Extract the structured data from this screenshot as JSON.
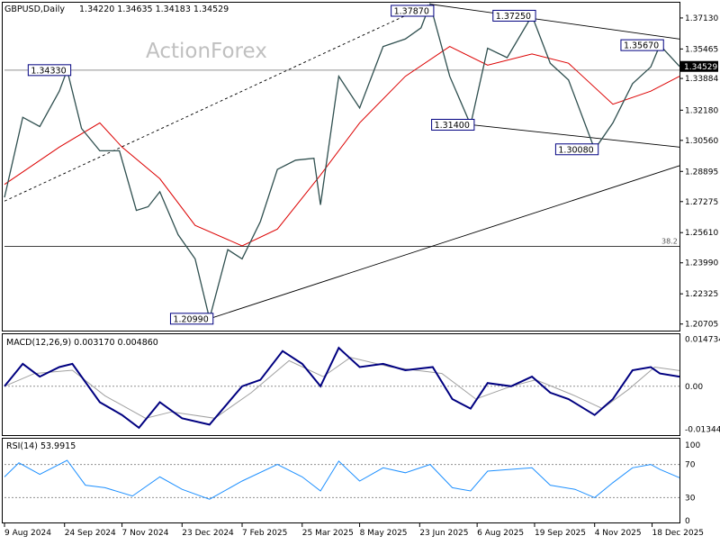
{
  "chart_data": {
    "type": "line",
    "symbol_title": "GBPUSD,Daily",
    "ohlc_text": "1.34220 1.34635 1.34183 1.34529",
    "watermark": "ActionForex",
    "price_axis": {
      "ylim": [
        1.204,
        1.379
      ],
      "tick_labels": [
        "1.37130",
        "1.35465",
        "1.33884",
        "1.32180",
        "1.30560",
        "1.28895",
        "1.27275",
        "1.25610",
        "1.23990",
        "1.22325",
        "1.20705"
      ],
      "current_price_label": "1.34529"
    },
    "fib_level": {
      "label": "38.2",
      "value": 1.2487
    },
    "horizontal_line": {
      "value": 1.3433
    },
    "x_axis": {
      "range": [
        "2024-08-09",
        "2026-01-08"
      ],
      "tick_labels": [
        {
          "label": "9 Aug 2024",
          "date": "2024-08-09"
        },
        {
          "label": "24 Sep 2024",
          "date": "2024-09-24"
        },
        {
          "label": "7 Nov 2024",
          "date": "2024-11-07"
        },
        {
          "label": "23 Dec 2024",
          "date": "2024-12-23"
        },
        {
          "label": "7 Feb 2025",
          "date": "2025-02-07"
        },
        {
          "label": "25 Mar 2025",
          "date": "2025-03-25"
        },
        {
          "label": "8 May 2025",
          "date": "2025-05-08"
        },
        {
          "label": "23 Jun 2025",
          "date": "2025-06-23"
        },
        {
          "label": "6 Aug 2025",
          "date": "2025-08-06"
        },
        {
          "label": "19 Sep 2025",
          "date": "2025-09-19"
        },
        {
          "label": "4 Nov 2025",
          "date": "2025-11-04"
        },
        {
          "label": "18 Dec 2025",
          "date": "2025-12-18"
        }
      ]
    },
    "price_series": [
      {
        "date": "2024-08-09",
        "value": 1.275
      },
      {
        "date": "2024-08-23",
        "value": 1.318
      },
      {
        "date": "2024-09-05",
        "value": 1.313
      },
      {
        "date": "2024-09-20",
        "value": 1.332
      },
      {
        "date": "2024-09-26",
        "value": 1.3433
      },
      {
        "date": "2024-10-07",
        "value": 1.312
      },
      {
        "date": "2024-10-21",
        "value": 1.3
      },
      {
        "date": "2024-11-05",
        "value": 1.3
      },
      {
        "date": "2024-11-18",
        "value": 1.268
      },
      {
        "date": "2024-11-27",
        "value": 1.27
      },
      {
        "date": "2024-12-06",
        "value": 1.278
      },
      {
        "date": "2024-12-20",
        "value": 1.255
      },
      {
        "date": "2025-01-02",
        "value": 1.242
      },
      {
        "date": "2025-01-13",
        "value": 1.2099
      },
      {
        "date": "2025-01-27",
        "value": 1.247
      },
      {
        "date": "2025-02-07",
        "value": 1.242
      },
      {
        "date": "2025-02-21",
        "value": 1.262
      },
      {
        "date": "2025-03-06",
        "value": 1.29
      },
      {
        "date": "2025-03-20",
        "value": 1.295
      },
      {
        "date": "2025-04-03",
        "value": 1.296
      },
      {
        "date": "2025-04-08",
        "value": 1.271
      },
      {
        "date": "2025-04-22",
        "value": 1.34
      },
      {
        "date": "2025-05-08",
        "value": 1.323
      },
      {
        "date": "2025-05-26",
        "value": 1.356
      },
      {
        "date": "2025-06-12",
        "value": 1.36
      },
      {
        "date": "2025-06-24",
        "value": 1.366
      },
      {
        "date": "2025-07-01",
        "value": 1.3787
      },
      {
        "date": "2025-07-16",
        "value": 1.34
      },
      {
        "date": "2025-08-01",
        "value": 1.314
      },
      {
        "date": "2025-08-14",
        "value": 1.355
      },
      {
        "date": "2025-08-29",
        "value": 1.35
      },
      {
        "date": "2025-09-17",
        "value": 1.3725
      },
      {
        "date": "2025-10-01",
        "value": 1.347
      },
      {
        "date": "2025-10-15",
        "value": 1.338
      },
      {
        "date": "2025-11-04",
        "value": 1.3008
      },
      {
        "date": "2025-11-18",
        "value": 1.315
      },
      {
        "date": "2025-12-03",
        "value": 1.336
      },
      {
        "date": "2025-12-17",
        "value": 1.345
      },
      {
        "date": "2025-12-24",
        "value": 1.3567
      },
      {
        "date": "2026-01-08",
        "value": 1.3453
      }
    ],
    "ma_series": [
      {
        "date": "2024-08-09",
        "value": 1.282
      },
      {
        "date": "2024-09-20",
        "value": 1.302
      },
      {
        "date": "2024-10-21",
        "value": 1.315
      },
      {
        "date": "2024-11-07",
        "value": 1.302
      },
      {
        "date": "2024-12-06",
        "value": 1.285
      },
      {
        "date": "2025-01-02",
        "value": 1.26
      },
      {
        "date": "2025-02-07",
        "value": 1.249
      },
      {
        "date": "2025-03-06",
        "value": 1.258
      },
      {
        "date": "2025-04-08",
        "value": 1.287
      },
      {
        "date": "2025-05-08",
        "value": 1.315
      },
      {
        "date": "2025-06-12",
        "value": 1.34
      },
      {
        "date": "2025-07-16",
        "value": 1.356
      },
      {
        "date": "2025-08-14",
        "value": 1.346
      },
      {
        "date": "2025-09-17",
        "value": 1.352
      },
      {
        "date": "2025-10-15",
        "value": 1.347
      },
      {
        "date": "2025-11-18",
        "value": 1.325
      },
      {
        "date": "2025-12-17",
        "value": 1.332
      },
      {
        "date": "2026-01-08",
        "value": 1.34
      }
    ],
    "annotations": [
      {
        "label": "1.34330",
        "date": "2024-09-26",
        "value": 1.3433
      },
      {
        "label": "1.37870",
        "date": "2025-07-01",
        "value": 1.3787
      },
      {
        "label": "1.37250",
        "date": "2025-09-17",
        "value": 1.3725
      },
      {
        "label": "1.35670",
        "date": "2025-12-24",
        "value": 1.3567
      },
      {
        "label": "1.31400",
        "date": "2025-08-01",
        "value": 1.314
      },
      {
        "label": "1.30080",
        "date": "2025-11-04",
        "value": 1.3008
      },
      {
        "label": "1.20990",
        "date": "2025-01-13",
        "value": 1.2099
      }
    ],
    "trendlines": [
      {
        "style": "dashed",
        "start": {
          "date": "2024-08-09",
          "value": 1.273
        },
        "end": {
          "date": "2025-07-01",
          "value": 1.3787
        }
      },
      {
        "style": "solid",
        "start": {
          "date": "2025-07-01",
          "value": 1.3787
        },
        "end": {
          "date": "2026-01-08",
          "value": 1.36
        }
      },
      {
        "style": "solid",
        "start": {
          "date": "2025-08-01",
          "value": 1.314
        },
        "end": {
          "date": "2026-01-08",
          "value": 1.302
        }
      },
      {
        "style": "solid",
        "start": {
          "date": "2025-01-13",
          "value": 1.2099
        },
        "end": {
          "date": "2026-01-08",
          "value": 1.292
        }
      }
    ],
    "macd": {
      "title": "MACD(12,26,9) 0.003170 0.004860",
      "ylim": [
        -0.015,
        0.016
      ],
      "tick_labels": [
        {
          "label": "0.014734",
          "value": 0.014734
        },
        {
          "label": "0.00",
          "value": 0.0
        },
        {
          "label": "-0.013442",
          "value": -0.013442
        }
      ],
      "series": [
        {
          "date": "2024-08-09",
          "value": 0.0
        },
        {
          "date": "2024-08-23",
          "value": 0.007
        },
        {
          "date": "2024-09-05",
          "value": 0.003
        },
        {
          "date": "2024-09-20",
          "value": 0.006
        },
        {
          "date": "2024-09-30",
          "value": 0.007
        },
        {
          "date": "2024-10-21",
          "value": -0.005
        },
        {
          "date": "2024-11-07",
          "value": -0.009
        },
        {
          "date": "2024-11-20",
          "value": -0.013
        },
        {
          "date": "2024-12-06",
          "value": -0.005
        },
        {
          "date": "2024-12-23",
          "value": -0.01
        },
        {
          "date": "2025-01-13",
          "value": -0.012
        },
        {
          "date": "2025-02-07",
          "value": 0.0
        },
        {
          "date": "2025-02-21",
          "value": 0.002
        },
        {
          "date": "2025-03-10",
          "value": 0.011
        },
        {
          "date": "2025-03-25",
          "value": 0.007
        },
        {
          "date": "2025-04-08",
          "value": 0.0
        },
        {
          "date": "2025-04-22",
          "value": 0.012
        },
        {
          "date": "2025-05-08",
          "value": 0.006
        },
        {
          "date": "2025-05-26",
          "value": 0.007
        },
        {
          "date": "2025-06-12",
          "value": 0.005
        },
        {
          "date": "2025-07-03",
          "value": 0.006
        },
        {
          "date": "2025-07-18",
          "value": -0.004
        },
        {
          "date": "2025-08-01",
          "value": -0.007
        },
        {
          "date": "2025-08-14",
          "value": 0.001
        },
        {
          "date": "2025-09-01",
          "value": 0.0
        },
        {
          "date": "2025-09-17",
          "value": 0.003
        },
        {
          "date": "2025-10-01",
          "value": -0.002
        },
        {
          "date": "2025-10-15",
          "value": -0.004
        },
        {
          "date": "2025-11-04",
          "value": -0.009
        },
        {
          "date": "2025-11-18",
          "value": -0.004
        },
        {
          "date": "2025-12-03",
          "value": 0.005
        },
        {
          "date": "2025-12-17",
          "value": 0.006
        },
        {
          "date": "2025-12-24",
          "value": 0.004
        },
        {
          "date": "2026-01-08",
          "value": 0.003
        }
      ],
      "signal": [
        {
          "date": "2024-08-09",
          "value": 0.0
        },
        {
          "date": "2024-09-01",
          "value": 0.004
        },
        {
          "date": "2024-09-30",
          "value": 0.005
        },
        {
          "date": "2024-10-25",
          "value": -0.003
        },
        {
          "date": "2024-11-25",
          "value": -0.01
        },
        {
          "date": "2024-12-15",
          "value": -0.008
        },
        {
          "date": "2025-01-17",
          "value": -0.01
        },
        {
          "date": "2025-02-14",
          "value": -0.002
        },
        {
          "date": "2025-03-15",
          "value": 0.008
        },
        {
          "date": "2025-04-10",
          "value": 0.003
        },
        {
          "date": "2025-05-01",
          "value": 0.009
        },
        {
          "date": "2025-06-01",
          "value": 0.006
        },
        {
          "date": "2025-07-10",
          "value": 0.004
        },
        {
          "date": "2025-08-05",
          "value": -0.004
        },
        {
          "date": "2025-09-01",
          "value": 0.0
        },
        {
          "date": "2025-09-20",
          "value": 0.002
        },
        {
          "date": "2025-10-20",
          "value": -0.003
        },
        {
          "date": "2025-11-10",
          "value": -0.007
        },
        {
          "date": "2025-11-30",
          "value": -0.001
        },
        {
          "date": "2025-12-20",
          "value": 0.006
        },
        {
          "date": "2026-01-08",
          "value": 0.0049
        }
      ]
    },
    "rsi": {
      "title": "RSI(14) 53.9915",
      "ylim": [
        0,
        100
      ],
      "tick_labels": [
        {
          "label": "100",
          "value": 100
        },
        {
          "label": "70",
          "value": 70
        },
        {
          "label": "30",
          "value": 30
        },
        {
          "label": "0",
          "value": 0
        }
      ],
      "series": [
        {
          "date": "2024-08-09",
          "value": 55
        },
        {
          "date": "2024-08-20",
          "value": 72
        },
        {
          "date": "2024-09-05",
          "value": 58
        },
        {
          "date": "2024-09-26",
          "value": 75
        },
        {
          "date": "2024-10-10",
          "value": 45
        },
        {
          "date": "2024-10-25",
          "value": 42
        },
        {
          "date": "2024-11-15",
          "value": 32
        },
        {
          "date": "2024-12-06",
          "value": 55
        },
        {
          "date": "2024-12-23",
          "value": 40
        },
        {
          "date": "2025-01-13",
          "value": 28
        },
        {
          "date": "2025-02-07",
          "value": 50
        },
        {
          "date": "2025-03-06",
          "value": 70
        },
        {
          "date": "2025-03-25",
          "value": 55
        },
        {
          "date": "2025-04-08",
          "value": 38
        },
        {
          "date": "2025-04-22",
          "value": 74
        },
        {
          "date": "2025-05-08",
          "value": 50
        },
        {
          "date": "2025-05-26",
          "value": 66
        },
        {
          "date": "2025-06-12",
          "value": 60
        },
        {
          "date": "2025-07-01",
          "value": 70
        },
        {
          "date": "2025-07-18",
          "value": 42
        },
        {
          "date": "2025-08-01",
          "value": 38
        },
        {
          "date": "2025-08-14",
          "value": 62
        },
        {
          "date": "2025-09-17",
          "value": 66
        },
        {
          "date": "2025-10-01",
          "value": 45
        },
        {
          "date": "2025-10-20",
          "value": 40
        },
        {
          "date": "2025-11-04",
          "value": 30
        },
        {
          "date": "2025-11-18",
          "value": 48
        },
        {
          "date": "2025-12-03",
          "value": 66
        },
        {
          "date": "2025-12-17",
          "value": 70
        },
        {
          "date": "2025-12-24",
          "value": 64
        },
        {
          "date": "2026-01-08",
          "value": 54
        }
      ]
    },
    "colors": {
      "price": "#2f4f4f",
      "ma": "#dc0000",
      "macd": "#000080",
      "macd_signal": "#a0a0a0",
      "rsi": "#1e90ff",
      "trendline": "#000000",
      "label_border": "#000080",
      "fib_line": "#000000",
      "current_price_bg": "#000000",
      "watermark": "#c0c0c0"
    }
  }
}
